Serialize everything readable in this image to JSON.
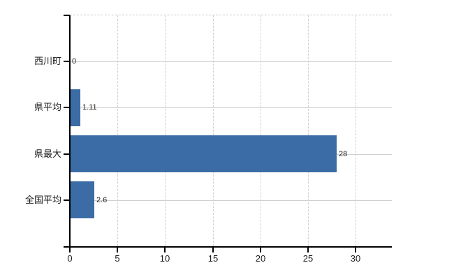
{
  "chart_data": {
    "type": "bar",
    "orientation": "horizontal",
    "title": "",
    "xlabel": "",
    "ylabel": "",
    "categories": [
      "西川町",
      "県平均",
      "県最大",
      "全国平均"
    ],
    "values": [
      0,
      1.11,
      28,
      2.6
    ],
    "value_labels": [
      "0",
      "1.11",
      "28",
      "2.6"
    ],
    "x_ticks": [
      0,
      5,
      10,
      15,
      20,
      25,
      30
    ],
    "x_tick_labels": [
      "0",
      "5",
      "10",
      "15",
      "20",
      "25",
      "30"
    ],
    "xlim": [
      0,
      33.8
    ],
    "legend": "none",
    "grid": {
      "vertical_style": "dashed",
      "horizontal_style": "solid",
      "top_border_style": "dashed"
    },
    "colors": {
      "bar": "#3b6ca5",
      "axis": "#000000",
      "grid": "#d0d0d0",
      "top_border": "#c9c9c9",
      "category_text": "#1a1a1a",
      "tick_text": "#1a1a1a",
      "value_text": "#222222",
      "background": "#ffffff"
    }
  }
}
